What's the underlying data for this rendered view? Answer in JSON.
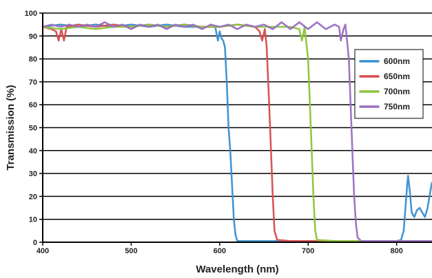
{
  "chart_data": {
    "type": "line",
    "xlabel": "Wavelength (nm)",
    "ylabel": "Transmission (%)",
    "xlim": [
      400,
      840
    ],
    "ylim": [
      0,
      100
    ],
    "xticks": [
      400,
      500,
      600,
      700,
      800
    ],
    "yticks": [
      0,
      10,
      20,
      30,
      40,
      50,
      60,
      70,
      80,
      90,
      100
    ],
    "grid": "horizontal",
    "legend_position": "right",
    "series": [
      {
        "name": "600nm",
        "color": "#3a8fd0",
        "points": [
          [
            400,
            94
          ],
          [
            420,
            95
          ],
          [
            440,
            94
          ],
          [
            460,
            95
          ],
          [
            480,
            94
          ],
          [
            500,
            95
          ],
          [
            520,
            94
          ],
          [
            540,
            95
          ],
          [
            560,
            94
          ],
          [
            580,
            94
          ],
          [
            595,
            94
          ],
          [
            598,
            88
          ],
          [
            600,
            92
          ],
          [
            602,
            89
          ],
          [
            604,
            88
          ],
          [
            606,
            85
          ],
          [
            608,
            70
          ],
          [
            610,
            50
          ],
          [
            612,
            40
          ],
          [
            614,
            25
          ],
          [
            616,
            10
          ],
          [
            618,
            3
          ],
          [
            620,
            0.5
          ],
          [
            640,
            0.5
          ],
          [
            660,
            0.5
          ],
          [
            680,
            0.5
          ],
          [
            700,
            0.5
          ],
          [
            720,
            0.5
          ],
          [
            740,
            0.5
          ],
          [
            760,
            0.5
          ],
          [
            780,
            0.5
          ],
          [
            800,
            0.5
          ],
          [
            805,
            1
          ],
          [
            808,
            5
          ],
          [
            810,
            15
          ],
          [
            812,
            25
          ],
          [
            813,
            29
          ],
          [
            815,
            22
          ],
          [
            817,
            13
          ],
          [
            820,
            11
          ],
          [
            823,
            14
          ],
          [
            826,
            15
          ],
          [
            829,
            13
          ],
          [
            832,
            11
          ],
          [
            835,
            15
          ],
          [
            838,
            22
          ],
          [
            840,
            26
          ]
        ]
      },
      {
        "name": "650nm",
        "color": "#d94c4c",
        "points": [
          [
            400,
            94
          ],
          [
            410,
            93
          ],
          [
            415,
            92
          ],
          [
            418,
            88
          ],
          [
            421,
            93
          ],
          [
            424,
            88
          ],
          [
            427,
            94
          ],
          [
            440,
            95
          ],
          [
            460,
            94
          ],
          [
            480,
            95
          ],
          [
            500,
            94
          ],
          [
            520,
            95
          ],
          [
            540,
            94
          ],
          [
            560,
            95
          ],
          [
            580,
            94
          ],
          [
            600,
            94
          ],
          [
            620,
            95
          ],
          [
            640,
            94
          ],
          [
            645,
            92
          ],
          [
            648,
            88
          ],
          [
            651,
            93
          ],
          [
            653,
            86
          ],
          [
            656,
            60
          ],
          [
            658,
            40
          ],
          [
            660,
            20
          ],
          [
            662,
            5
          ],
          [
            665,
            1
          ],
          [
            680,
            0.5
          ],
          [
            700,
            0.5
          ],
          [
            720,
            0.5
          ],
          [
            740,
            0.5
          ],
          [
            760,
            0.5
          ],
          [
            780,
            0.5
          ],
          [
            800,
            0.5
          ],
          [
            820,
            0.5
          ],
          [
            840,
            0.5
          ]
        ]
      },
      {
        "name": "700nm",
        "color": "#8cc43c",
        "points": [
          [
            400,
            94
          ],
          [
            420,
            93
          ],
          [
            440,
            94
          ],
          [
            460,
            93
          ],
          [
            480,
            94
          ],
          [
            500,
            94
          ],
          [
            520,
            95
          ],
          [
            540,
            94
          ],
          [
            560,
            95
          ],
          [
            580,
            94
          ],
          [
            600,
            94
          ],
          [
            620,
            95
          ],
          [
            640,
            94
          ],
          [
            660,
            94
          ],
          [
            680,
            94
          ],
          [
            690,
            93
          ],
          [
            693,
            88
          ],
          [
            696,
            94
          ],
          [
            700,
            80
          ],
          [
            702,
            60
          ],
          [
            704,
            40
          ],
          [
            706,
            20
          ],
          [
            708,
            5
          ],
          [
            710,
            1
          ],
          [
            730,
            0.5
          ],
          [
            750,
            0.5
          ],
          [
            770,
            0.5
          ],
          [
            790,
            0.5
          ],
          [
            810,
            0.5
          ],
          [
            840,
            0.5
          ]
        ]
      },
      {
        "name": "750nm",
        "color": "#9a6ec0",
        "points": [
          [
            400,
            94
          ],
          [
            410,
            95
          ],
          [
            420,
            94
          ],
          [
            430,
            95
          ],
          [
            440,
            94
          ],
          [
            450,
            95
          ],
          [
            460,
            94
          ],
          [
            470,
            96
          ],
          [
            480,
            94
          ],
          [
            490,
            95
          ],
          [
            500,
            93
          ],
          [
            510,
            95
          ],
          [
            520,
            94
          ],
          [
            530,
            95
          ],
          [
            540,
            93
          ],
          [
            550,
            95
          ],
          [
            560,
            94
          ],
          [
            570,
            95
          ],
          [
            580,
            93
          ],
          [
            590,
            95
          ],
          [
            600,
            94
          ],
          [
            610,
            95
          ],
          [
            620,
            93
          ],
          [
            630,
            95
          ],
          [
            640,
            94
          ],
          [
            650,
            95
          ],
          [
            660,
            93
          ],
          [
            670,
            96
          ],
          [
            680,
            93
          ],
          [
            690,
            96
          ],
          [
            700,
            93
          ],
          [
            710,
            96
          ],
          [
            720,
            93
          ],
          [
            730,
            95
          ],
          [
            735,
            94
          ],
          [
            737,
            88
          ],
          [
            740,
            93
          ],
          [
            742,
            95
          ],
          [
            744,
            88
          ],
          [
            746,
            80
          ],
          [
            748,
            60
          ],
          [
            750,
            40
          ],
          [
            752,
            20
          ],
          [
            754,
            8
          ],
          [
            756,
            2
          ],
          [
            760,
            0.5
          ],
          [
            780,
            0.5
          ],
          [
            800,
            0.5
          ],
          [
            820,
            0.5
          ],
          [
            840,
            0.5
          ]
        ]
      }
    ]
  }
}
